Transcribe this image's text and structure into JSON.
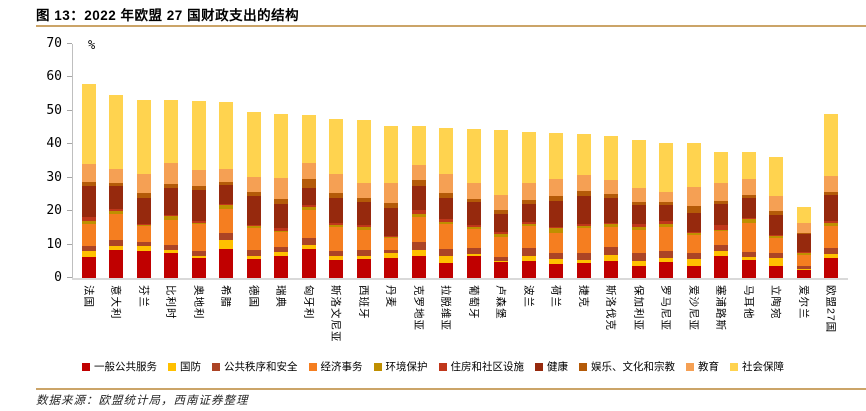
{
  "title": "图 13：2022 年欧盟 27 国财政支出的结构",
  "source_note": "数据来源：欧盟统计局，西南证券整理",
  "colors": {
    "divider": "#CBA468",
    "axis_line": "#BFBFBF",
    "baseline": "#D9D9D9"
  },
  "chart_data": {
    "type": "bar",
    "stacked": true,
    "title": "2022 年欧盟 27 国财政支出的结构",
    "unit_label": "%",
    "xlabel": "",
    "ylabel": "%",
    "ylim": [
      0,
      70
    ],
    "yticks": [
      0,
      10,
      20,
      30,
      40,
      50,
      60,
      70
    ],
    "grid": false,
    "legend_position": "bottom",
    "categories": [
      "法国",
      "意大利",
      "芬兰",
      "比利时",
      "奥地利",
      "希腊",
      "德国",
      "瑞典",
      "匈牙利",
      "斯洛文尼亚",
      "西班牙",
      "丹麦",
      "克罗地亚",
      "拉脱维亚",
      "葡萄牙",
      "卢森堡",
      "波兰",
      "荷兰",
      "捷克",
      "斯洛伐克",
      "保加利亚",
      "罗马尼亚",
      "爱沙尼亚",
      "塞浦路斯",
      "马耳他",
      "立陶宛",
      "爱尔兰",
      "欧盟27国"
    ],
    "series": [
      {
        "name": "一般公共服务",
        "color": "#C00000",
        "values": [
          6.2,
          8.3,
          8.0,
          7.4,
          6.0,
          8.7,
          5.6,
          6.7,
          8.6,
          5.4,
          5.6,
          6.1,
          6.7,
          4.5,
          6.5,
          4.8,
          5.0,
          4.3,
          4.6,
          5.1,
          3.6,
          4.8,
          3.6,
          6.5,
          5.5,
          3.7,
          2.4,
          6.0
        ]
      },
      {
        "name": "国防",
        "color": "#FFC000",
        "values": [
          1.8,
          1.3,
          1.6,
          0.9,
          0.6,
          2.6,
          1.1,
          1.2,
          1.2,
          1.2,
          1.0,
          1.3,
          1.6,
          2.1,
          0.8,
          0.4,
          1.6,
          1.3,
          0.9,
          1.7,
          1.4,
          1.2,
          2.0,
          1.6,
          0.7,
          2.2,
          0.2,
          1.3
        ]
      },
      {
        "name": "公共秩序和安全",
        "color": "#AC4425",
        "values": [
          1.7,
          1.8,
          1.2,
          1.7,
          1.4,
          2.1,
          1.6,
          1.3,
          2.2,
          1.6,
          1.8,
          0.9,
          2.4,
          2.2,
          1.8,
          1.0,
          2.3,
          1.9,
          1.9,
          2.4,
          2.6,
          2.1,
          1.8,
          1.7,
          1.5,
          1.5,
          0.9,
          1.7
        ]
      },
      {
        "name": "经济事务",
        "color": "#F57E20",
        "values": [
          6.4,
          7.7,
          4.9,
          7.3,
          8.2,
          7.2,
          6.6,
          4.5,
          8.5,
          7.1,
          6.1,
          3.7,
          7.7,
          7.5,
          5.5,
          6.0,
          6.7,
          6.1,
          7.5,
          6.1,
          6.9,
          7.2,
          5.6,
          4.4,
          8.8,
          4.7,
          3.5,
          6.6
        ]
      },
      {
        "name": "环境保护",
        "color": "#BF8F00",
        "values": [
          1.0,
          0.9,
          0.2,
          1.3,
          0.4,
          1.3,
          0.6,
          0.5,
          0.7,
          0.6,
          0.9,
          0.4,
          0.9,
          0.6,
          0.7,
          1.1,
          0.5,
          1.4,
          0.8,
          0.8,
          0.7,
          0.8,
          0.6,
          0.3,
          1.2,
          0.5,
          0.4,
          0.8
        ]
      },
      {
        "name": "住房和社区设施",
        "color": "#C0371B",
        "values": [
          1.3,
          0.7,
          0.3,
          0.3,
          0.4,
          0.2,
          0.4,
          0.7,
          0.8,
          0.5,
          0.5,
          0.2,
          1.1,
          0.9,
          0.5,
          0.6,
          0.7,
          0.4,
          0.6,
          0.5,
          1.1,
          0.9,
          0.3,
          1.5,
          0.4,
          0.4,
          0.5,
          0.6
        ]
      },
      {
        "name": "健康",
        "color": "#96290D",
        "values": [
          9.0,
          6.9,
          7.7,
          7.9,
          9.3,
          5.8,
          8.7,
          7.4,
          4.8,
          7.7,
          6.8,
          8.3,
          7.1,
          6.3,
          7.1,
          5.3,
          5.4,
          7.8,
          8.2,
          7.3,
          5.6,
          4.8,
          5.7,
          6.3,
          5.9,
          5.9,
          5.2,
          7.7
        ]
      },
      {
        "name": "娱乐、文化和宗教",
        "color": "#B45A08",
        "values": [
          1.4,
          0.8,
          1.5,
          1.3,
          1.2,
          0.7,
          1.0,
          1.3,
          2.9,
          1.4,
          1.2,
          1.5,
          1.7,
          1.5,
          0.9,
          1.2,
          1.3,
          1.4,
          1.4,
          1.1,
          0.9,
          0.9,
          2.0,
          0.9,
          0.9,
          1.1,
          0.5,
          1.1
        ]
      },
      {
        "name": "教育",
        "color": "#F5A054",
        "values": [
          5.2,
          4.1,
          5.6,
          6.2,
          4.8,
          3.9,
          4.5,
          6.3,
          4.7,
          5.6,
          4.4,
          5.9,
          4.6,
          5.5,
          4.5,
          4.6,
          4.9,
          5.1,
          4.8,
          4.3,
          4.0,
          3.2,
          5.6,
          5.1,
          4.8,
          4.5,
          3.0,
          4.7
        ]
      },
      {
        "name": "社会保障",
        "color": "#FFD34F",
        "values": [
          24.1,
          22.2,
          22.3,
          19.1,
          20.7,
          20.3,
          19.7,
          19.3,
          14.4,
          16.4,
          19.0,
          17.1,
          11.6,
          13.7,
          16.2,
          19.3,
          15.3,
          13.7,
          12.3,
          13.2,
          14.5,
          14.6,
          13.1,
          9.5,
          8.0,
          11.7,
          4.6,
          18.7
        ]
      }
    ],
    "totals": [
      58.1,
      54.7,
      53.3,
      53.4,
      53.0,
      52.8,
      49.8,
      49.2,
      48.8,
      47.5,
      47.3,
      45.4,
      45.4,
      44.8,
      44.5,
      44.3,
      43.7,
      43.4,
      43.0,
      42.5,
      41.3,
      40.5,
      40.3,
      37.8,
      37.7,
      36.2,
      21.2,
      49.2
    ]
  }
}
